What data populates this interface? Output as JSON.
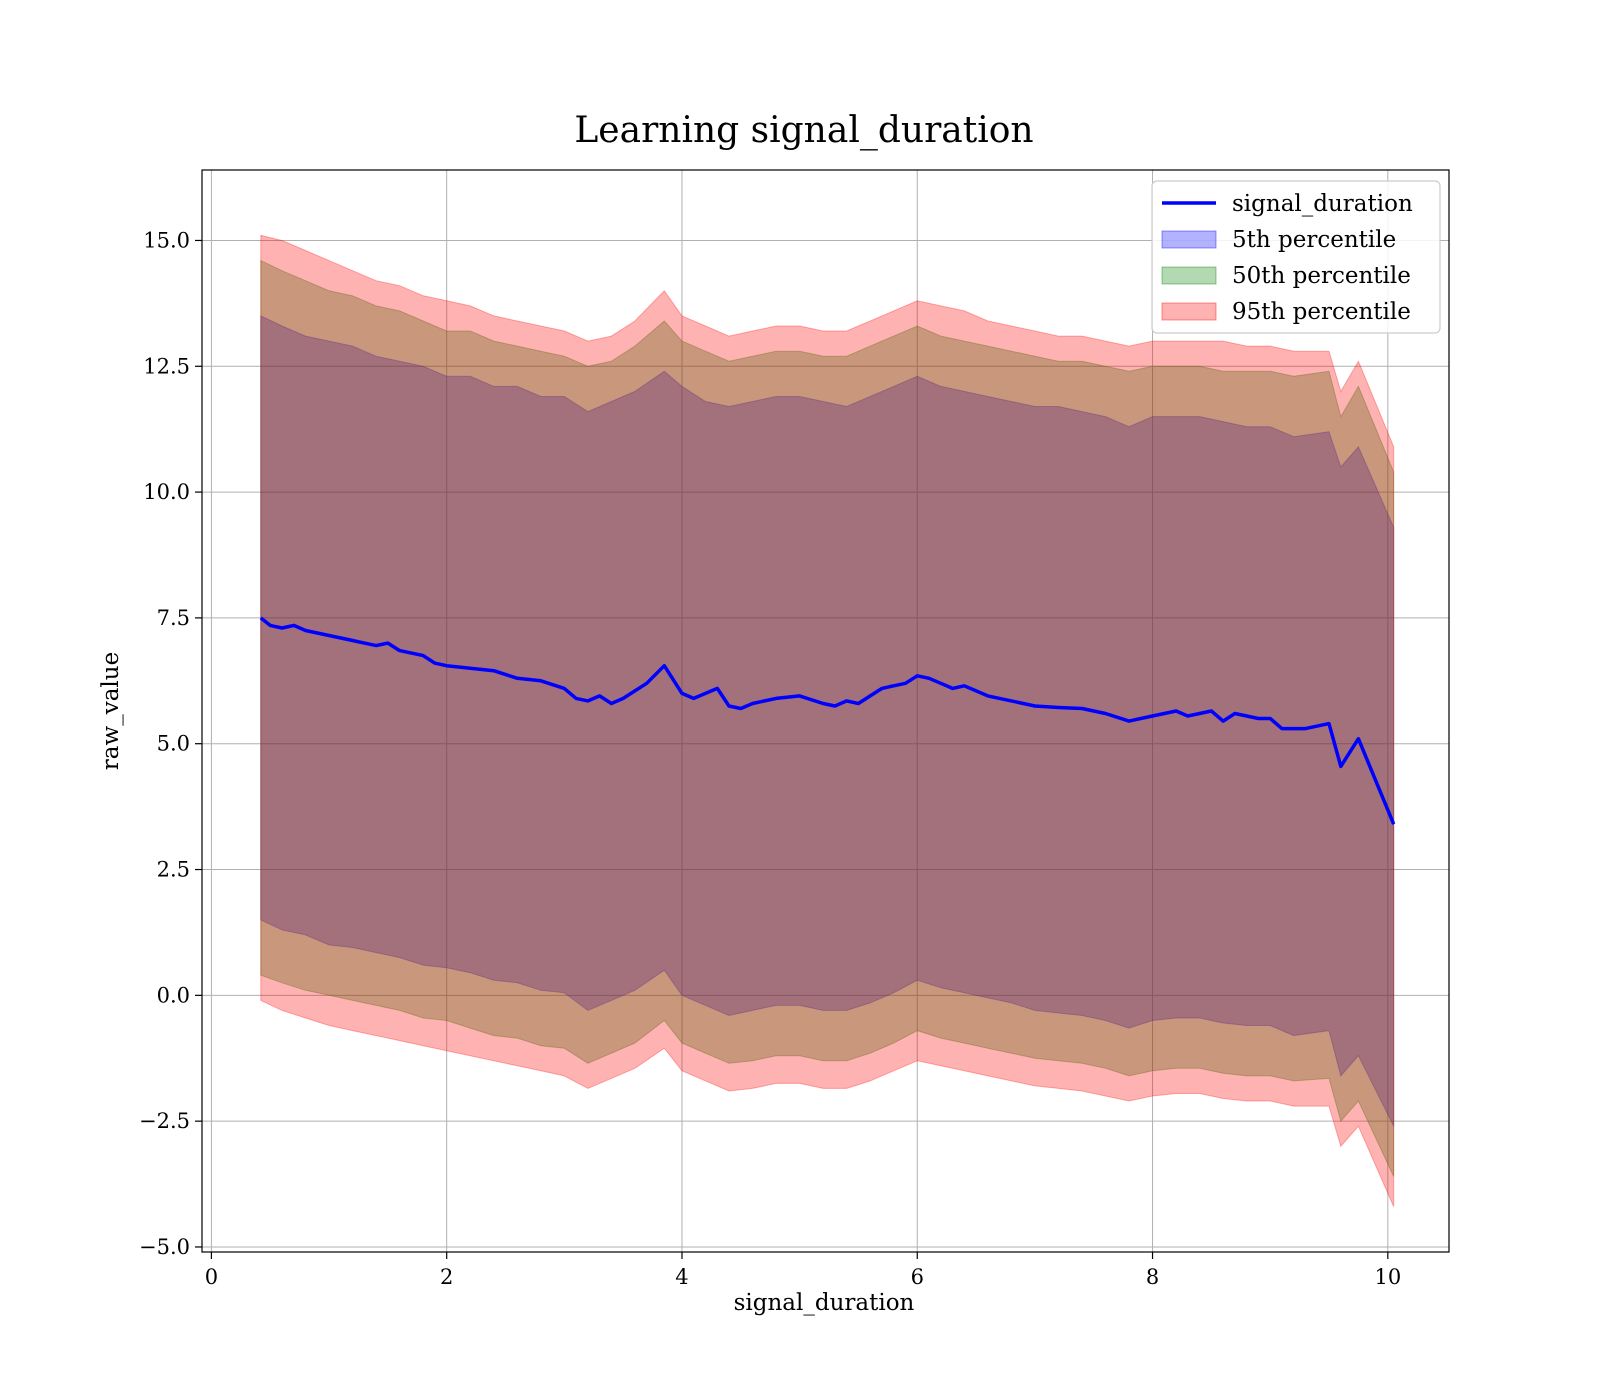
{
  "chart_data": {
    "type": "line",
    "title": "Learning signal_duration",
    "xlabel": "signal_duration",
    "ylabel": "raw_value",
    "xlim": [
      -0.08,
      10.52
    ],
    "ylim": [
      -5.1,
      16.4
    ],
    "x_ticks": [
      0,
      2,
      4,
      6,
      8,
      10
    ],
    "y_ticks": [
      -5.0,
      -2.5,
      0.0,
      2.5,
      5.0,
      7.5,
      10.0,
      12.5,
      15.0
    ],
    "x_tick_labels": [
      "0",
      "2",
      "4",
      "6",
      "8",
      "10"
    ],
    "y_tick_labels": [
      "−5.0",
      "−2.5",
      "0.0",
      "2.5",
      "5.0",
      "7.5",
      "10.0",
      "12.5",
      "15.0"
    ],
    "grid": true,
    "legend_position": "top-right",
    "line_series": {
      "name": "signal_duration",
      "color": "#0000ff",
      "x": [
        0.42,
        0.5,
        0.6,
        0.7,
        0.8,
        0.9,
        1.0,
        1.1,
        1.2,
        1.3,
        1.4,
        1.5,
        1.6,
        1.7,
        1.8,
        1.9,
        2.0,
        2.2,
        2.4,
        2.6,
        2.8,
        3.0,
        3.1,
        3.2,
        3.3,
        3.4,
        3.5,
        3.6,
        3.7,
        3.85,
        4.0,
        4.1,
        4.2,
        4.3,
        4.4,
        4.5,
        4.6,
        4.8,
        5.0,
        5.2,
        5.3,
        5.4,
        5.5,
        5.6,
        5.7,
        5.8,
        5.9,
        6.0,
        6.1,
        6.2,
        6.3,
        6.4,
        6.6,
        6.8,
        7.0,
        7.2,
        7.4,
        7.6,
        7.8,
        8.0,
        8.2,
        8.3,
        8.4,
        8.5,
        8.6,
        8.7,
        8.8,
        8.9,
        9.0,
        9.1,
        9.3,
        9.5,
        9.6,
        9.75,
        10.05
      ],
      "y": [
        7.5,
        7.35,
        7.3,
        7.35,
        7.25,
        7.2,
        7.15,
        7.1,
        7.05,
        7.0,
        6.95,
        7.0,
        6.85,
        6.8,
        6.75,
        6.6,
        6.55,
        6.5,
        6.45,
        6.3,
        6.25,
        6.1,
        5.9,
        5.85,
        5.95,
        5.8,
        5.9,
        6.05,
        6.2,
        6.55,
        6.0,
        5.9,
        6.0,
        6.1,
        5.75,
        5.7,
        5.8,
        5.9,
        5.95,
        5.8,
        5.75,
        5.85,
        5.8,
        5.95,
        6.1,
        6.15,
        6.2,
        6.35,
        6.3,
        6.2,
        6.1,
        6.15,
        5.95,
        5.85,
        5.75,
        5.72,
        5.7,
        5.6,
        5.45,
        5.55,
        5.65,
        5.55,
        5.6,
        5.65,
        5.45,
        5.6,
        5.55,
        5.5,
        5.5,
        5.3,
        5.3,
        5.4,
        4.55,
        5.1,
        3.4
      ]
    },
    "bands": [
      {
        "name": "5th percentile",
        "color": "#0000ff",
        "x": [
          0.42,
          0.6,
          0.8,
          1.0,
          1.2,
          1.4,
          1.6,
          1.8,
          2.0,
          2.2,
          2.4,
          2.6,
          2.8,
          3.0,
          3.2,
          3.4,
          3.6,
          3.85,
          4.0,
          4.2,
          4.4,
          4.6,
          4.8,
          5.0,
          5.2,
          5.4,
          5.6,
          5.8,
          6.0,
          6.2,
          6.4,
          6.6,
          6.8,
          7.0,
          7.2,
          7.4,
          7.6,
          7.8,
          8.0,
          8.2,
          8.4,
          8.6,
          8.8,
          9.0,
          9.2,
          9.5,
          9.6,
          9.75,
          10.05
        ],
        "upper": [
          13.5,
          13.3,
          13.1,
          13.0,
          12.9,
          12.7,
          12.6,
          12.5,
          12.3,
          12.3,
          12.1,
          12.1,
          11.9,
          11.9,
          11.6,
          11.8,
          12.0,
          12.4,
          12.1,
          11.8,
          11.7,
          11.8,
          11.9,
          11.9,
          11.8,
          11.7,
          11.9,
          12.1,
          12.3,
          12.1,
          12.0,
          11.9,
          11.8,
          11.7,
          11.7,
          11.6,
          11.5,
          11.3,
          11.5,
          11.5,
          11.5,
          11.4,
          11.3,
          11.3,
          11.1,
          11.2,
          10.5,
          10.9,
          9.3
        ],
        "lower": [
          1.5,
          1.3,
          1.2,
          1.0,
          0.95,
          0.85,
          0.75,
          0.6,
          0.55,
          0.45,
          0.3,
          0.25,
          0.1,
          0.05,
          -0.3,
          -0.1,
          0.1,
          0.5,
          0.0,
          -0.2,
          -0.4,
          -0.3,
          -0.2,
          -0.2,
          -0.3,
          -0.3,
          -0.15,
          0.05,
          0.3,
          0.15,
          0.05,
          -0.05,
          -0.15,
          -0.3,
          -0.35,
          -0.4,
          -0.5,
          -0.65,
          -0.5,
          -0.45,
          -0.45,
          -0.55,
          -0.6,
          -0.6,
          -0.8,
          -0.7,
          -1.6,
          -1.2,
          -2.6
        ]
      },
      {
        "name": "50th percentile",
        "color": "#008000",
        "x": [
          0.42,
          0.6,
          0.8,
          1.0,
          1.2,
          1.4,
          1.6,
          1.8,
          2.0,
          2.2,
          2.4,
          2.6,
          2.8,
          3.0,
          3.2,
          3.4,
          3.6,
          3.85,
          4.0,
          4.2,
          4.4,
          4.6,
          4.8,
          5.0,
          5.2,
          5.4,
          5.6,
          5.8,
          6.0,
          6.2,
          6.4,
          6.6,
          6.8,
          7.0,
          7.2,
          7.4,
          7.6,
          7.8,
          8.0,
          8.2,
          8.4,
          8.6,
          8.8,
          9.0,
          9.2,
          9.5,
          9.6,
          9.75,
          10.05
        ],
        "upper": [
          14.6,
          14.4,
          14.2,
          14.0,
          13.9,
          13.7,
          13.6,
          13.4,
          13.2,
          13.2,
          13.0,
          12.9,
          12.8,
          12.7,
          12.5,
          12.6,
          12.9,
          13.4,
          13.0,
          12.8,
          12.6,
          12.7,
          12.8,
          12.8,
          12.7,
          12.7,
          12.9,
          13.1,
          13.3,
          13.1,
          13.0,
          12.9,
          12.8,
          12.7,
          12.6,
          12.6,
          12.5,
          12.4,
          12.5,
          12.5,
          12.5,
          12.4,
          12.4,
          12.4,
          12.3,
          12.4,
          11.5,
          12.1,
          10.4
        ],
        "lower": [
          0.4,
          0.25,
          0.1,
          0.0,
          -0.1,
          -0.2,
          -0.3,
          -0.45,
          -0.5,
          -0.65,
          -0.8,
          -0.85,
          -1.0,
          -1.05,
          -1.35,
          -1.15,
          -0.95,
          -0.5,
          -0.95,
          -1.15,
          -1.35,
          -1.3,
          -1.2,
          -1.2,
          -1.3,
          -1.3,
          -1.15,
          -0.95,
          -0.7,
          -0.85,
          -0.95,
          -1.05,
          -1.15,
          -1.25,
          -1.3,
          -1.35,
          -1.45,
          -1.6,
          -1.5,
          -1.45,
          -1.45,
          -1.55,
          -1.6,
          -1.6,
          -1.7,
          -1.65,
          -2.5,
          -2.1,
          -3.6
        ]
      },
      {
        "name": "95th percentile",
        "color": "#ff0000",
        "x": [
          0.42,
          0.6,
          0.8,
          1.0,
          1.2,
          1.4,
          1.6,
          1.8,
          2.0,
          2.2,
          2.4,
          2.6,
          2.8,
          3.0,
          3.2,
          3.4,
          3.6,
          3.85,
          4.0,
          4.2,
          4.4,
          4.6,
          4.8,
          5.0,
          5.2,
          5.4,
          5.6,
          5.8,
          6.0,
          6.2,
          6.4,
          6.6,
          6.8,
          7.0,
          7.2,
          7.4,
          7.6,
          7.8,
          8.0,
          8.2,
          8.4,
          8.6,
          8.8,
          9.0,
          9.2,
          9.5,
          9.6,
          9.75,
          10.05
        ],
        "upper": [
          15.1,
          15.0,
          14.8,
          14.6,
          14.4,
          14.2,
          14.1,
          13.9,
          13.8,
          13.7,
          13.5,
          13.4,
          13.3,
          13.2,
          13.0,
          13.1,
          13.4,
          14.0,
          13.5,
          13.3,
          13.1,
          13.2,
          13.3,
          13.3,
          13.2,
          13.2,
          13.4,
          13.6,
          13.8,
          13.7,
          13.6,
          13.4,
          13.3,
          13.2,
          13.1,
          13.1,
          13.0,
          12.9,
          13.0,
          13.0,
          13.0,
          13.0,
          12.9,
          12.9,
          12.8,
          12.8,
          12.0,
          12.6,
          10.9
        ],
        "lower": [
          -0.1,
          -0.3,
          -0.45,
          -0.6,
          -0.7,
          -0.8,
          -0.9,
          -1.0,
          -1.1,
          -1.2,
          -1.3,
          -1.4,
          -1.5,
          -1.6,
          -1.85,
          -1.65,
          -1.45,
          -1.05,
          -1.5,
          -1.7,
          -1.9,
          -1.85,
          -1.75,
          -1.75,
          -1.85,
          -1.85,
          -1.7,
          -1.5,
          -1.3,
          -1.4,
          -1.5,
          -1.6,
          -1.7,
          -1.8,
          -1.85,
          -1.9,
          -2.0,
          -2.1,
          -2.0,
          -1.95,
          -1.95,
          -2.05,
          -2.1,
          -2.1,
          -2.2,
          -2.2,
          -3.0,
          -2.6,
          -4.2
        ]
      }
    ]
  }
}
